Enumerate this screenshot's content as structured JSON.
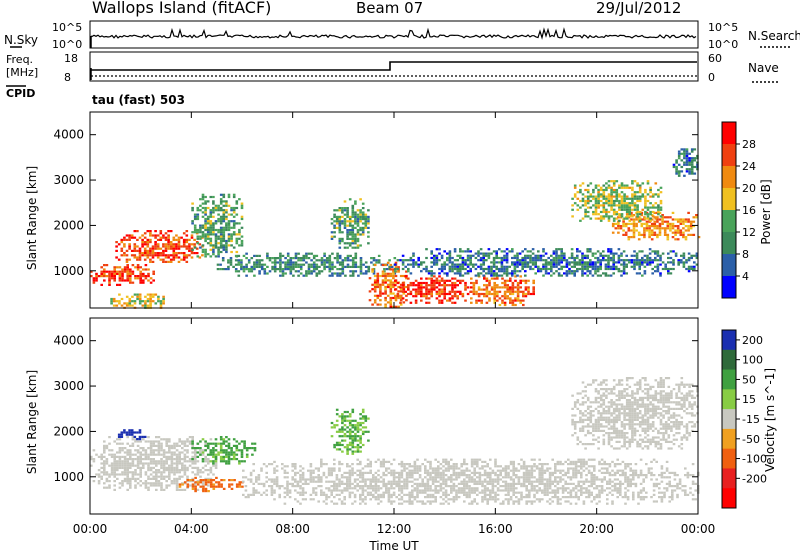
{
  "header": {
    "station": "Wallops Island (fitACF)",
    "beam": "Beam 07",
    "date": "29/Jul/2012"
  },
  "noise_panel": {
    "left_label": "N.Sky",
    "right_label": "N.Search",
    "left_ticks": [
      "10^5",
      "10^0"
    ],
    "right_ticks": [
      "10^5",
      "10^0"
    ]
  },
  "freq_panel": {
    "left_label_1": "Freq.",
    "left_label_2": "[MHz]",
    "cpid_label": "CPID",
    "right_label": "Nave",
    "left_ticks": [
      "18",
      "8"
    ],
    "right_ticks": [
      "60",
      "0"
    ],
    "cpid_text": "tau (fast) 503"
  },
  "x_axis": {
    "label": "Time UT",
    "ticks": [
      "00:00",
      "04:00",
      "08:00",
      "12:00",
      "16:00",
      "20:00",
      "00:00"
    ]
  },
  "power_panel": {
    "ylabel": "Slant Range [km]",
    "yticks": [
      "1000",
      "2000",
      "3000",
      "4000"
    ],
    "colorbar_label": "Power [dB]",
    "colorbar_ticks": [
      "4",
      "8",
      "12",
      "16",
      "20",
      "24",
      "28"
    ],
    "colors": [
      "#0000ff",
      "#2b5fa8",
      "#3c8a5a",
      "#49a35a",
      "#f0c020",
      "#f08a10",
      "#f04010",
      "#ff0000"
    ]
  },
  "velocity_panel": {
    "ylabel": "Slant Range [km]",
    "yticks": [
      "1000",
      "2000",
      "3000",
      "4000"
    ],
    "colorbar_label": "Velocity [m s^-1]",
    "colorbar_ticks": [
      "200",
      "100",
      "50",
      "15",
      "-15",
      "-50",
      "-100",
      "-200"
    ],
    "colors": [
      "#1a2fb0",
      "#2f6a3a",
      "#3fa040",
      "#88cc44",
      "#c8c8c0",
      "#f0a020",
      "#f06010",
      "#e82020",
      "#ff0000"
    ]
  },
  "chart_data": [
    {
      "type": "heatmap",
      "title": "Power",
      "xlabel": "Time UT",
      "ylabel": "Slant Range [km]",
      "x_range_hours": [
        0,
        24
      ],
      "ylim": [
        180,
        4500
      ],
      "colorbar": {
        "label": "Power [dB]",
        "range": [
          0,
          30
        ]
      },
      "regions": [
        {
          "t": [
            0.0,
            2.5
          ],
          "r": [
            700,
            1150
          ],
          "power": 27
        },
        {
          "t": [
            1.0,
            4.5
          ],
          "r": [
            1200,
            1900
          ],
          "power": 26
        },
        {
          "t": [
            0.8,
            3.0
          ],
          "r": [
            200,
            500
          ],
          "power": 18
        },
        {
          "t": [
            4.0,
            6.0
          ],
          "r": [
            1300,
            2700
          ],
          "power": 12
        },
        {
          "t": [
            5.0,
            12.0
          ],
          "r": [
            900,
            1400
          ],
          "power": 10
        },
        {
          "t": [
            9.5,
            11.0
          ],
          "r": [
            1500,
            2600
          ],
          "power": 12
        },
        {
          "t": [
            11.0,
            12.5
          ],
          "r": [
            200,
            1200
          ],
          "power": 24
        },
        {
          "t": [
            12.0,
            15.0
          ],
          "r": [
            300,
            900
          ],
          "power": 28
        },
        {
          "t": [
            15.0,
            17.5
          ],
          "r": [
            250,
            900
          ],
          "power": 24
        },
        {
          "t": [
            12.0,
            24.0
          ],
          "r": [
            900,
            1500
          ],
          "power": 8
        },
        {
          "t": [
            20.5,
            24.0
          ],
          "r": [
            1700,
            2300
          ],
          "power": 22
        },
        {
          "t": [
            19.0,
            22.5
          ],
          "r": [
            2100,
            3000
          ],
          "power": 16
        },
        {
          "t": [
            23.0,
            24.0
          ],
          "r": [
            3100,
            3700
          ],
          "power": 8
        }
      ]
    },
    {
      "type": "heatmap",
      "title": "Velocity",
      "xlabel": "Time UT",
      "ylabel": "Slant Range [km]",
      "x_range_hours": [
        0,
        24
      ],
      "ylim": [
        180,
        4500
      ],
      "colorbar": {
        "label": "Velocity [m s^-1]",
        "range": [
          -200,
          200
        ]
      },
      "regions": [
        {
          "t": [
            0.0,
            5.0
          ],
          "r": [
            700,
            1900
          ],
          "velocity": 0
        },
        {
          "t": [
            1.0,
            2.2
          ],
          "r": [
            1850,
            2050
          ],
          "velocity": 180
        },
        {
          "t": [
            3.5,
            6.0
          ],
          "r": [
            700,
            1000
          ],
          "velocity": -60
        },
        {
          "t": [
            4.0,
            6.5
          ],
          "r": [
            1300,
            1900
          ],
          "velocity": 40
        },
        {
          "t": [
            9.5,
            11.0
          ],
          "r": [
            1500,
            2500
          ],
          "velocity": 30
        },
        {
          "t": [
            6.0,
            24.0
          ],
          "r": [
            400,
            1400
          ],
          "velocity": 0
        },
        {
          "t": [
            19.0,
            24.0
          ],
          "r": [
            1600,
            3200
          ],
          "velocity": 0
        }
      ]
    }
  ]
}
